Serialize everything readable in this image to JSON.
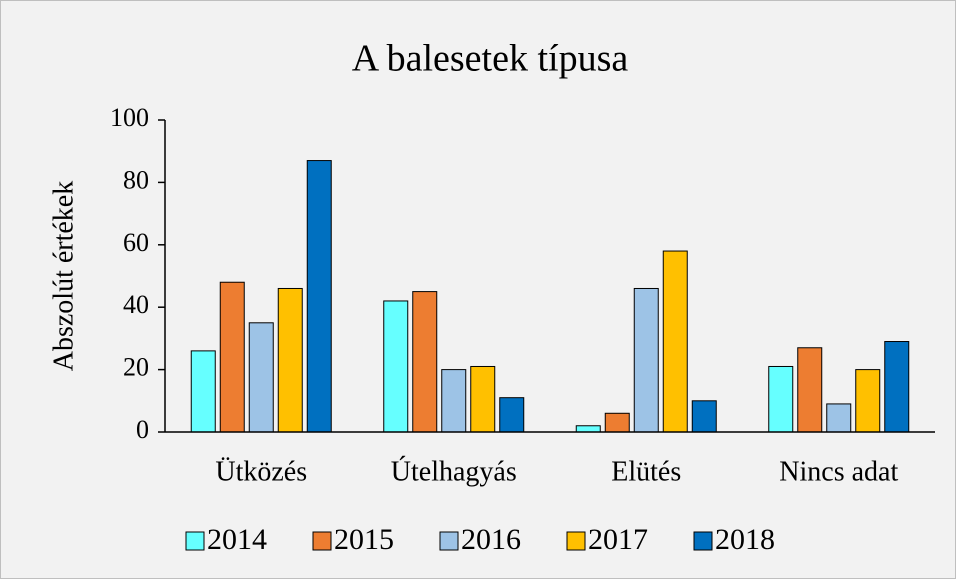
{
  "chart_data": {
    "type": "bar",
    "title": "A balesetek típusa",
    "y_label": "Abszolút értékek",
    "categories": [
      "Ütközés",
      "Útelhagyás",
      "Elütés",
      "Nincs adat"
    ],
    "series": [
      {
        "name": "2014",
        "color": "#66FFFF",
        "values": [
          26,
          42,
          2,
          21
        ]
      },
      {
        "name": "2015",
        "color": "#ED7D31",
        "values": [
          48,
          45,
          6,
          27
        ]
      },
      {
        "name": "2016",
        "color": "#9DC3E6",
        "values": [
          35,
          20,
          46,
          9
        ]
      },
      {
        "name": "2017",
        "color": "#FFC000",
        "values": [
          46,
          21,
          58,
          20
        ]
      },
      {
        "name": "2018",
        "color": "#0070C0",
        "values": [
          87,
          11,
          10,
          29
        ]
      }
    ],
    "ylim": [
      0,
      100
    ],
    "yticks": [
      0,
      20,
      40,
      60,
      80,
      100
    ],
    "grid": false,
    "legend": "bottom"
  }
}
